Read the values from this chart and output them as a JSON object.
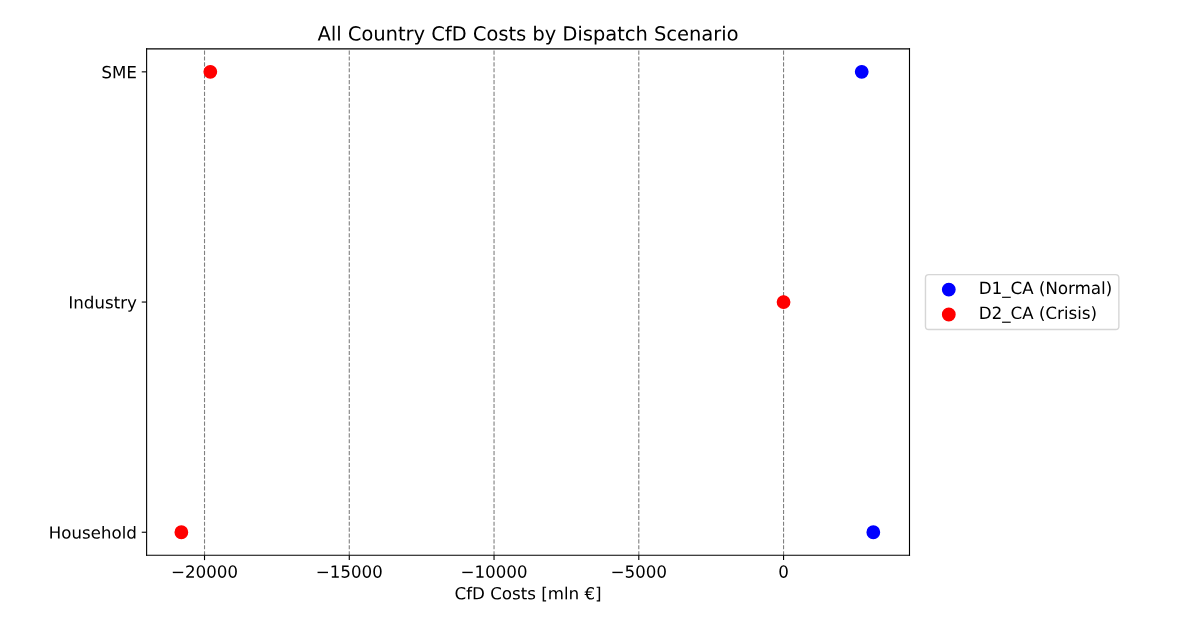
{
  "chart_data": {
    "type": "scatter",
    "title": "All Country CfD Costs by Dispatch Scenario",
    "xlabel": "CfD Costs [mln €]",
    "orientation": "horizontal",
    "categories": [
      "SME",
      "Industry",
      "Household"
    ],
    "series": [
      {
        "name": "D1_CA (Normal)",
        "color": "#0000ff",
        "values": [
          2700,
          null,
          3100
        ]
      },
      {
        "name": "D2_CA (Crisis)",
        "color": "#ff0000",
        "values": [
          -19800,
          0,
          -20800
        ]
      }
    ],
    "xlim": [
      -22000,
      4350
    ],
    "xticks": [
      -20000,
      -15000,
      -10000,
      -5000,
      0
    ],
    "grid": "x",
    "legend": "right",
    "marker": "circle"
  }
}
